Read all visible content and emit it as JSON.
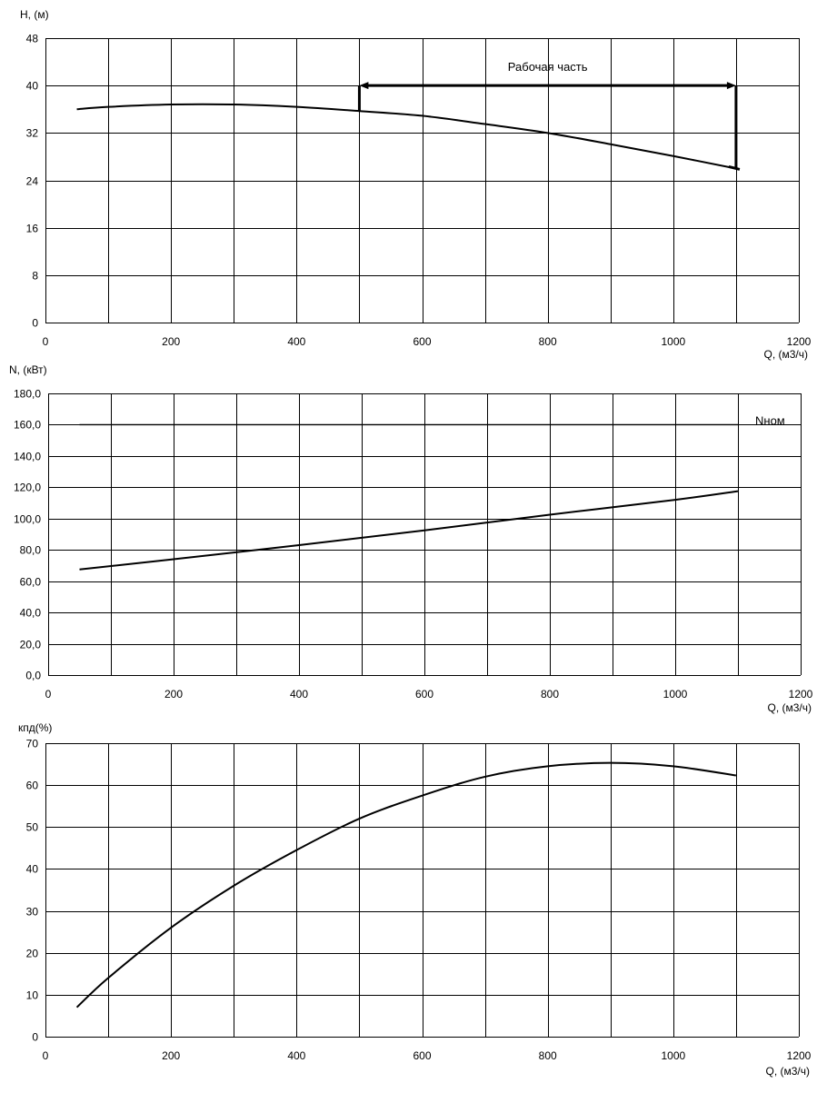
{
  "chart_data": [
    {
      "type": "line",
      "ylabel": "H, (м)",
      "xlabel": "Q, (м3/ч)",
      "xlim": [
        0,
        1200
      ],
      "ylim": [
        0,
        48
      ],
      "x_ticks": [
        "0",
        "200",
        "400",
        "600",
        "800",
        "1000",
        "1200"
      ],
      "y_ticks": [
        "0",
        "8",
        "16",
        "24",
        "32",
        "40",
        "48"
      ],
      "grid": true,
      "series": [
        {
          "x": [
            50,
            100,
            200,
            300,
            400,
            500,
            600,
            700,
            800,
            900,
            1000,
            1100
          ],
          "y": [
            36.0,
            36.4,
            36.8,
            36.8,
            36.4,
            35.7,
            34.9,
            33.5,
            32.0,
            30.1,
            28.1,
            26.0
          ]
        }
      ],
      "annotation": {
        "text": "Рабочая часть",
        "x_start": 500,
        "x_end": 1100,
        "y": 40
      }
    },
    {
      "type": "line",
      "ylabel": "N, (кВт)",
      "xlabel": "Q, (м3/ч)",
      "xlim": [
        0,
        1200
      ],
      "ylim": [
        0,
        180
      ],
      "x_ticks": [
        "0",
        "200",
        "400",
        "600",
        "800",
        "1000",
        "1200"
      ],
      "y_ticks": [
        "0,0",
        "20,0",
        "40,0",
        "60,0",
        "80,0",
        "100,0",
        "120,0",
        "140,0",
        "160,0",
        "180,0"
      ],
      "grid": true,
      "series": [
        {
          "x": [
            50,
            1100
          ],
          "y": [
            160,
            160
          ],
          "label": "Nном"
        },
        {
          "x": [
            50,
            200,
            400,
            600,
            800,
            1000,
            1100
          ],
          "y": [
            67.5,
            74,
            83,
            92.5,
            102.5,
            112,
            117.5
          ]
        }
      ]
    },
    {
      "type": "line",
      "ylabel": "кпд(%)",
      "xlabel": "Q, (м3/ч)",
      "xlim": [
        0,
        1200
      ],
      "ylim": [
        0,
        70
      ],
      "x_ticks": [
        "0",
        "200",
        "400",
        "600",
        "800",
        "1000",
        "1200"
      ],
      "y_ticks": [
        "0",
        "10",
        "20",
        "30",
        "40",
        "50",
        "60",
        "70"
      ],
      "grid": true,
      "series": [
        {
          "x": [
            50,
            100,
            200,
            300,
            400,
            500,
            600,
            700,
            800,
            900,
            1000,
            1100
          ],
          "y": [
            7,
            14,
            26,
            36,
            44.5,
            52,
            57.5,
            62,
            64.5,
            65.3,
            64.5,
            62.3
          ]
        }
      ]
    }
  ]
}
